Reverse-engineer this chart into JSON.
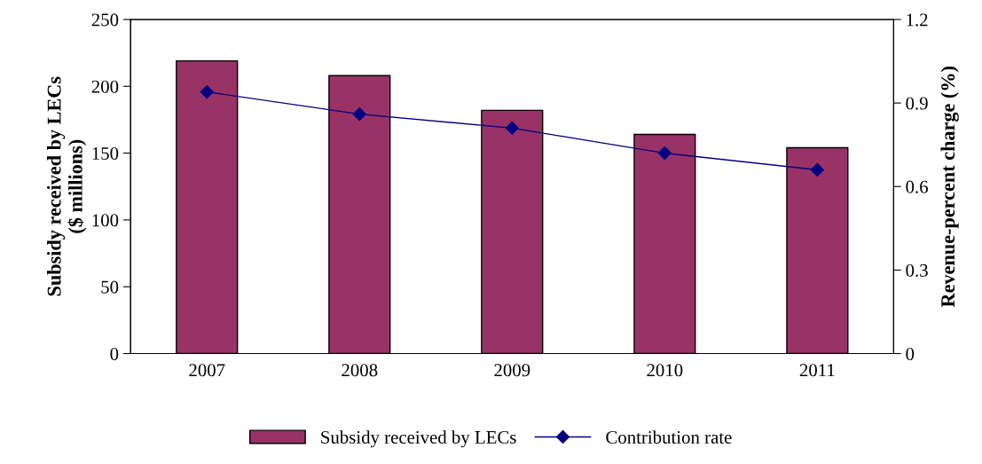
{
  "chart_data": {
    "type": "bar",
    "categories": [
      "2007",
      "2008",
      "2009",
      "2010",
      "2011"
    ],
    "series": [
      {
        "name": "Subsidy received by LECs",
        "color": "#993366",
        "values": [
          219,
          208,
          182,
          164,
          154
        ]
      },
      {
        "name": "Contribution rate",
        "type": "line",
        "axis": "y2",
        "color": "#000080",
        "marker": "diamond",
        "values": [
          0.94,
          0.86,
          0.81,
          0.72,
          0.66
        ]
      }
    ],
    "ylabel": "Subsidy received by LECs\n($ millions)",
    "y2label": "Revenue-percent charge (%)",
    "ylim": [
      0,
      250
    ],
    "yticks": [
      0,
      50,
      100,
      150,
      200,
      250
    ],
    "y2lim": [
      0,
      1.2
    ],
    "y2ticks": [
      {
        "value": 0,
        "label": "0"
      },
      {
        "value": 0.3,
        "label": "0.3"
      },
      {
        "value": 0.6,
        "label": "0.6"
      },
      {
        "value": 0.9,
        "label": "0.9"
      },
      {
        "value": 1.2,
        "label": "1.2"
      }
    ],
    "grid": false,
    "legend": "bottom"
  }
}
